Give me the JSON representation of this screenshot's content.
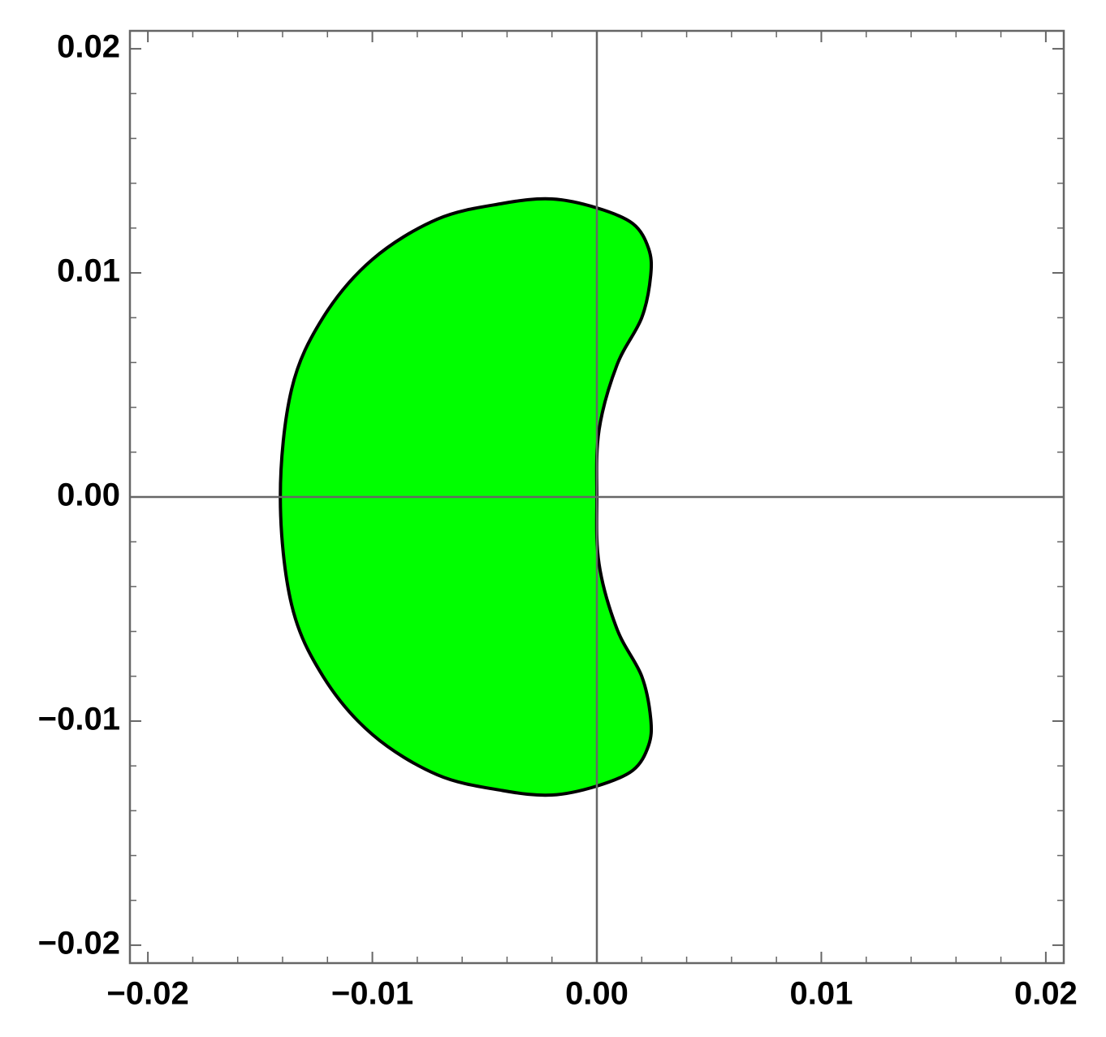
{
  "chart_data": {
    "type": "region",
    "x": [
      -0.0141,
      -0.0136,
      -0.0122,
      -0.01,
      -0.0071,
      -0.0042,
      -0.002,
      0.0,
      0.0016,
      0.0023,
      0.0024,
      0.002,
      0.0009,
      0.0001,
      0.0,
      0.0001,
      0.0009,
      0.002,
      0.0024,
      0.0023,
      0.0016,
      0.0,
      -0.002,
      -0.0042,
      -0.0071,
      -0.01,
      -0.0122,
      -0.0136
    ],
    "y": [
      0,
      0.0048,
      0.008,
      0.0106,
      0.0124,
      0.0131,
      0.0133,
      0.0129,
      0.0122,
      0.0111,
      0.0099,
      0.008,
      0.0059,
      0.003,
      0,
      -0.003,
      -0.0059,
      -0.008,
      -0.0099,
      -0.0111,
      -0.0122,
      -0.0129,
      -0.0133,
      -0.0131,
      -0.0124,
      -0.0106,
      -0.008,
      -0.0048
    ],
    "color": "#00ff00",
    "edge_color": "#000000",
    "axes_color": "#666666",
    "xlim": [
      -0.0208,
      0.0208
    ],
    "ylim": [
      -0.0208,
      0.0208
    ],
    "xticks": [
      {
        "value": -0.02,
        "label": "−0.02"
      },
      {
        "value": -0.01,
        "label": "−0.01"
      },
      {
        "value": 0,
        "label": "0.00"
      },
      0.01,
      0.02
    ],
    "yticks": [
      {
        "value": -0.02,
        "label": "−0.02"
      },
      {
        "value": -0.01,
        "label": "−0.01"
      },
      {
        "value": 0,
        "label": "0.00"
      },
      0.01,
      0.02
    ],
    "xminorticks": [
      -0.018,
      -0.016,
      -0.014,
      -0.012,
      -0.008,
      -0.006,
      -0.004,
      -0.002,
      0.002,
      0.004,
      0.006,
      0.008,
      0.012,
      0.014,
      0.016,
      0.018
    ],
    "yminorticks": [
      -0.018,
      -0.016,
      -0.014,
      -0.012,
      -0.008,
      -0.006,
      -0.004,
      -0.002,
      0.002,
      0.004,
      0.006,
      0.008,
      0.012,
      0.014,
      0.016,
      0.018
    ]
  }
}
